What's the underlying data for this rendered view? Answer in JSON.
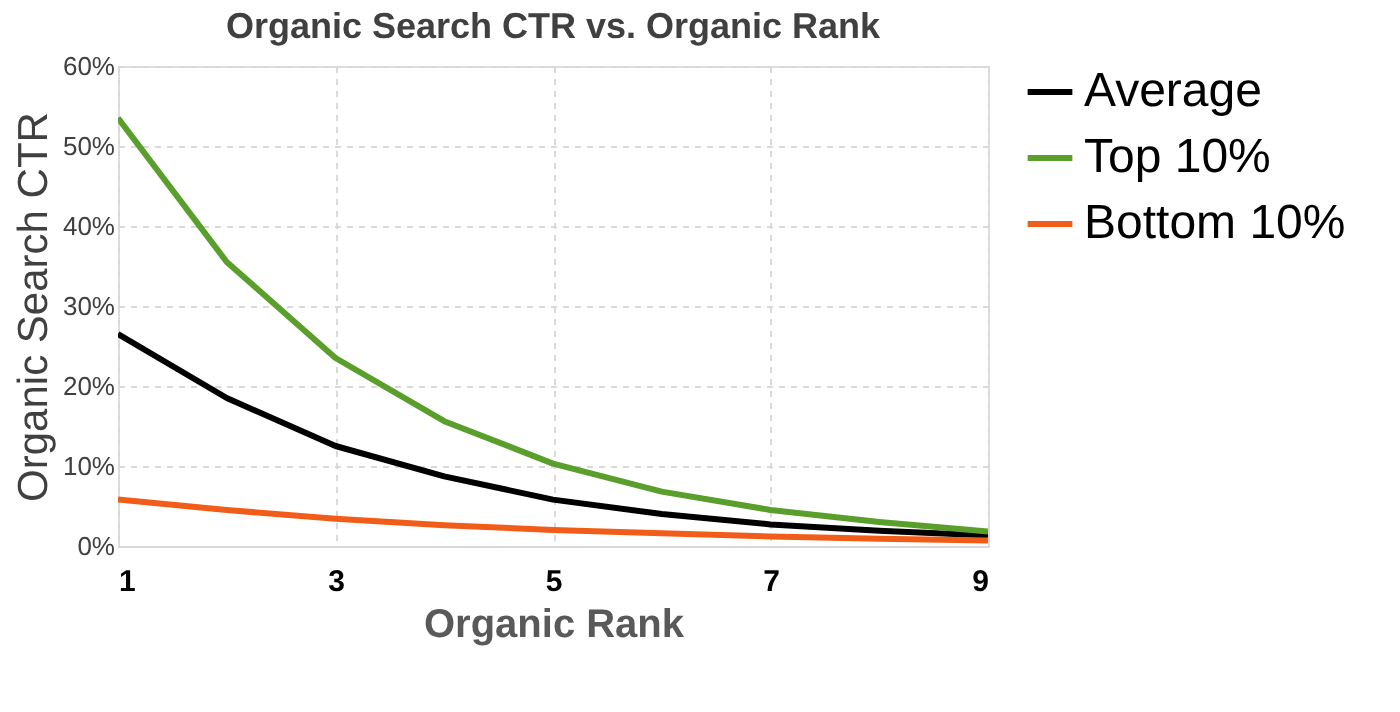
{
  "chart_data": {
    "type": "line",
    "title": "Organic Search CTR vs. Organic Rank",
    "xlabel": "Organic Rank",
    "ylabel": "Organic Search CTR",
    "x": [
      1,
      2,
      3,
      4,
      5,
      6,
      7,
      8,
      9
    ],
    "series": [
      {
        "name": "Average",
        "color": "#000000",
        "values": [
          26.5,
          18.5,
          12.5,
          8.7,
          5.8,
          4.0,
          2.7,
          1.9,
          1.3
        ]
      },
      {
        "name": "Top 10%",
        "color": "#5a9e2c",
        "values": [
          53.5,
          35.5,
          23.5,
          15.6,
          10.3,
          6.8,
          4.5,
          3.0,
          1.8
        ]
      },
      {
        "name": "Bottom 10%",
        "color": "#f25c19",
        "values": [
          5.8,
          4.5,
          3.4,
          2.6,
          2.0,
          1.6,
          1.2,
          0.9,
          0.7
        ]
      }
    ],
    "xlim": [
      1,
      9
    ],
    "xticks": [
      1,
      3,
      5,
      7,
      9
    ],
    "ylim": [
      0,
      60
    ],
    "yticks": [
      {
        "value": 0,
        "label": "0%"
      },
      {
        "value": 10,
        "label": "10%"
      },
      {
        "value": 20,
        "label": "20%"
      },
      {
        "value": 30,
        "label": "30%"
      },
      {
        "value": 40,
        "label": "40%"
      },
      {
        "value": 50,
        "label": "50%"
      },
      {
        "value": 60,
        "label": "60%"
      }
    ],
    "grid": true,
    "legend": "right",
    "marker": "none",
    "line_style": "solid"
  }
}
